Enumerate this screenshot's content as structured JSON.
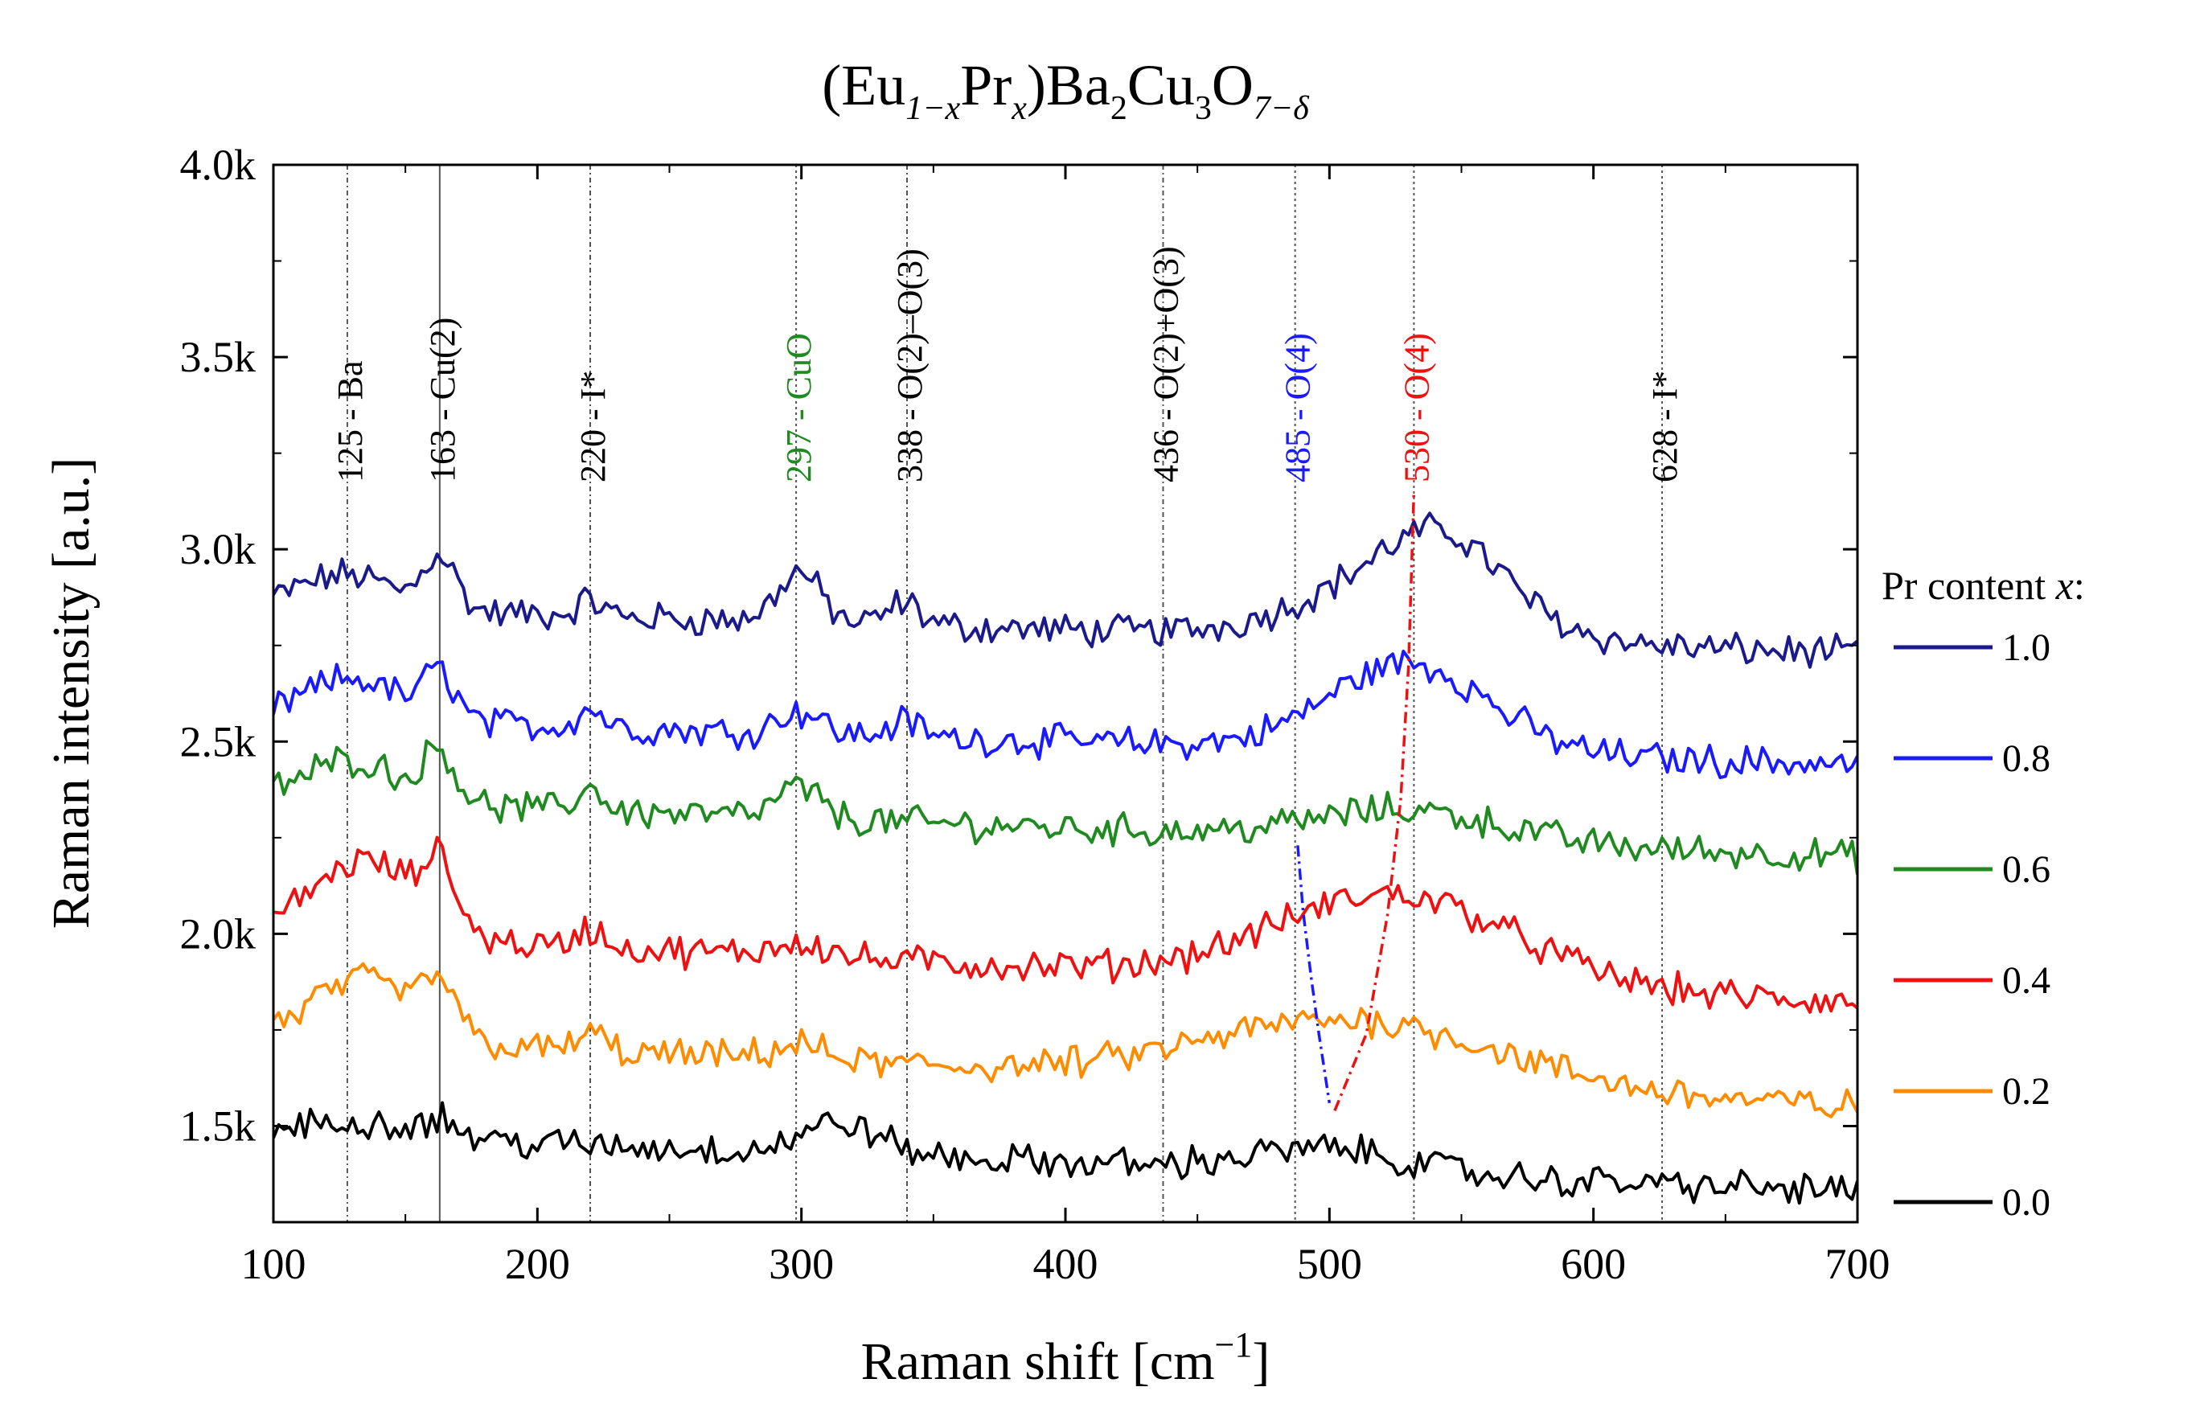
{
  "chart_data": {
    "type": "line",
    "title": {
      "base": "(Eu",
      "sub1": "1−x",
      "mid1": "Pr",
      "sub2": "x",
      "mid2": ")Ba",
      "sub3": "2",
      "mid3": "Cu",
      "sub4": "3",
      "mid4": "O",
      "sub5": "7−δ"
    },
    "xlabel": {
      "main": "Raman shift [cm",
      "sup": "−1",
      "tail": "]"
    },
    "ylabel": "Raman intensity [a.u.]",
    "xlim": [
      100,
      700
    ],
    "ylim": [
      1250,
      4000
    ],
    "xticks": [
      100,
      200,
      300,
      400,
      500,
      600,
      700
    ],
    "xtick_labels": [
      "100",
      "200",
      "300",
      "400",
      "500",
      "600",
      "700"
    ],
    "yticks": [
      1500,
      2000,
      2500,
      3000,
      3500,
      4000
    ],
    "ytick_labels": [
      "1.5k",
      "2.0k",
      "2.5k",
      "3.0k",
      "3.5k",
      "4.0k"
    ],
    "legend_title": {
      "text": "Pr content ",
      "var": "x",
      "colon": ":"
    },
    "legend_position": "right-outside",
    "series": [
      {
        "name": "1.0",
        "color": "#1a1a8c",
        "baseline": 2850,
        "peaks": [
          [
            128,
            18,
            90
          ],
          [
            163,
            6,
            140
          ],
          [
            220,
            5,
            40
          ],
          [
            299,
            8,
            130
          ],
          [
            339,
            6,
            60
          ],
          [
            530,
            35,
            180
          ],
          [
            545,
            20,
            120
          ]
        ],
        "slope": -120
      },
      {
        "name": "0.8",
        "color": "#1a1aff",
        "baseline": 2560,
        "peaks": [
          [
            130,
            18,
            110
          ],
          [
            163,
            6,
            120
          ],
          [
            220,
            5,
            50
          ],
          [
            299,
            8,
            60
          ],
          [
            339,
            6,
            40
          ],
          [
            530,
            30,
            230
          ]
        ],
        "slope": -120
      },
      {
        "name": "0.6",
        "color": "#1f8a1f",
        "baseline": 2350,
        "peaks": [
          [
            130,
            18,
            110
          ],
          [
            163,
            6,
            130
          ],
          [
            220,
            5,
            60
          ],
          [
            299,
            8,
            80
          ],
          [
            530,
            35,
            80
          ]
        ],
        "slope": -150
      },
      {
        "name": "0.4",
        "color": "#ee1111",
        "baseline": 2000,
        "peaks": [
          [
            135,
            20,
            200
          ],
          [
            163,
            6,
            150
          ],
          [
            220,
            5,
            50
          ],
          [
            299,
            10,
            40
          ],
          [
            525,
            45,
            230
          ]
        ],
        "slope": -180
      },
      {
        "name": "0.2",
        "color": "#ff8c00",
        "baseline": 1730,
        "peaks": [
          [
            135,
            20,
            160
          ],
          [
            163,
            6,
            120
          ],
          [
            220,
            5,
            50
          ],
          [
            299,
            10,
            40
          ],
          [
            510,
            55,
            170
          ]
        ],
        "slope": -180
      },
      {
        "name": "0.0",
        "color": "#000000",
        "baseline": 1480,
        "peaks": [
          [
            135,
            22,
            40
          ],
          [
            163,
            6,
            40
          ],
          [
            315,
            15,
            80
          ],
          [
            500,
            30,
            60
          ]
        ],
        "slope": -150
      }
    ],
    "vlines": [
      {
        "x": 128,
        "label": "125 - Ba",
        "color": "#000000",
        "style": "dashdot"
      },
      {
        "x": 163,
        "label": "163 - Cu(2)",
        "color": "#000000",
        "style": "solid"
      },
      {
        "x": 220,
        "label": "220 - I*",
        "color": "#000000",
        "style": "dashdot"
      },
      {
        "x": 298,
        "label": "297 - CuO",
        "color": "#1f8a1f",
        "style": "dotted"
      },
      {
        "x": 340,
        "label": "338 - O(2)–O(3)",
        "color": "#000000",
        "style": "dashdot"
      },
      {
        "x": 437,
        "label": "436 - O(2)+O(3)",
        "color": "#000000",
        "style": "dashdot"
      },
      {
        "x": 487,
        "label": "485 - O(4)",
        "color": "#1a1aff",
        "style": "dotted"
      },
      {
        "x": 532,
        "label": "530 - O(4)",
        "color": "#ee1111",
        "style": "dotted"
      },
      {
        "x": 626,
        "label": "628 - I*",
        "color": "#000000",
        "style": "dotted"
      }
    ],
    "trend_curves": [
      {
        "name": "O(4) blue trend",
        "color": "#1a1aff",
        "points": [
          [
            488,
            2230
          ],
          [
            490,
            2060
          ],
          [
            493,
            1890
          ],
          [
            496,
            1740
          ],
          [
            500,
            1560
          ]
        ]
      },
      {
        "name": "O(4) red trend",
        "color": "#ee1111",
        "points": [
          [
            502,
            1540
          ],
          [
            514,
            1740
          ],
          [
            522,
            2050
          ],
          [
            527,
            2350
          ],
          [
            530,
            2700
          ],
          [
            532,
            3150
          ]
        ]
      }
    ]
  }
}
